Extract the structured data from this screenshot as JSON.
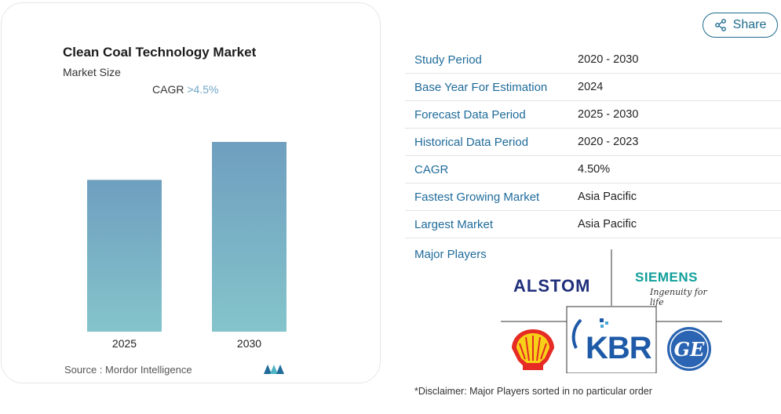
{
  "chart": {
    "title": "Clean Coal Technology Market",
    "subtitle": "Market Size",
    "cagr_prefix": "CAGR",
    "cagr_value": ">4.5%",
    "source": "Source :  Mordor Intelligence"
  },
  "chart_data": {
    "type": "bar",
    "categories": [
      "2025",
      "2030"
    ],
    "values": [
      0.8,
      1.0
    ],
    "title": "Clean Coal Technology Market",
    "subtitle": "Market Size",
    "xlabel": "",
    "ylabel": "",
    "colors": [
      "#6f9fbf",
      "#84c4cb"
    ]
  },
  "share": {
    "label": "Share",
    "icon": "share-icon"
  },
  "table": {
    "rows": [
      {
        "key": "Study Period",
        "value": "2020 - 2030"
      },
      {
        "key": "Base Year For Estimation",
        "value": "2024"
      },
      {
        "key": "Forecast Data Period",
        "value": "2025 - 2030"
      },
      {
        "key": "Historical Data Period",
        "value": "2020 - 2023"
      },
      {
        "key": "CAGR",
        "value": "4.50%"
      },
      {
        "key": "Fastest Growing Market",
        "value": "Asia Pacific"
      },
      {
        "key": "Largest Market",
        "value": "Asia Pacific"
      }
    ],
    "players_label": "Major Players"
  },
  "logos": {
    "alstom": "ALSTOM",
    "siemens": "SIEMENS",
    "siemens_tagline": "Ingenuity for life",
    "kbr": "KBR",
    "shell": "shell-logo",
    "ge": "ge-logo"
  },
  "disclaimer": "*Disclaimer: Major Players sorted in no particular order",
  "colors": {
    "accent": "#1f6b9a",
    "bar_top": "#6f9fbf",
    "bar_bottom": "#84c4cb"
  }
}
